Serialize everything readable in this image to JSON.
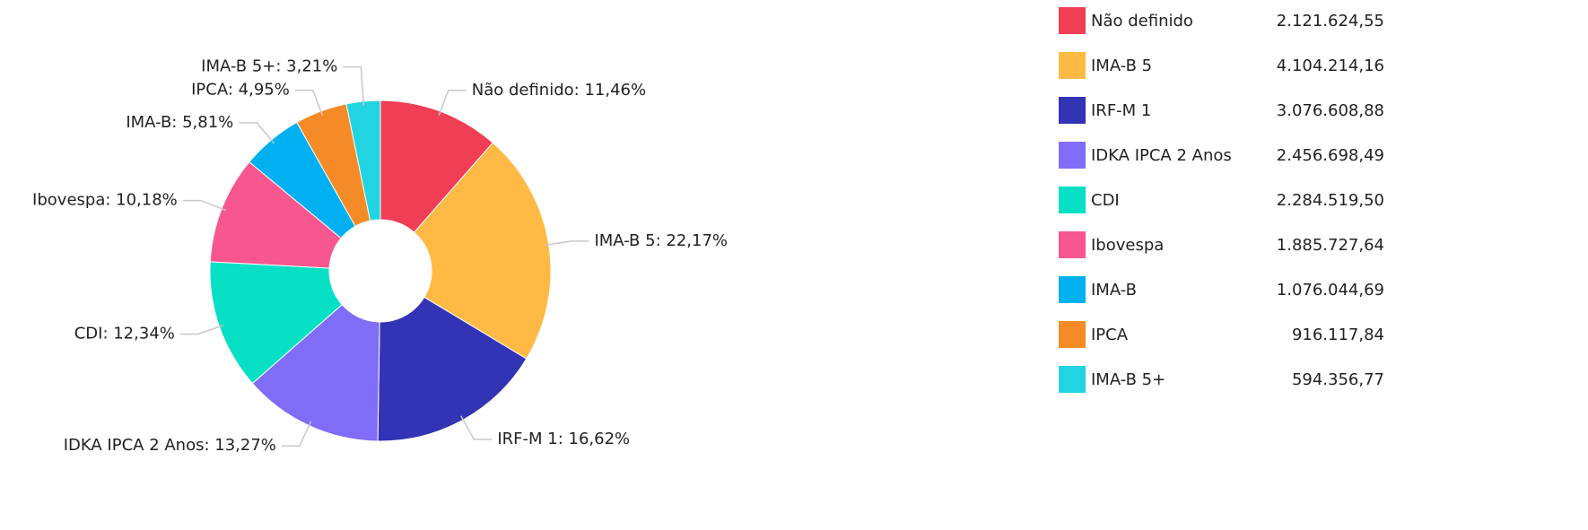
{
  "chart_data": {
    "type": "pie",
    "categories": [
      "Não definido",
      "IMA-B 5",
      "IRF-M 1",
      "IDKA IPCA 2 Anos",
      "CDI",
      "Ibovespa",
      "IMA-B",
      "IPCA",
      "IMA-B 5+"
    ],
    "values": [
      11.46,
      22.17,
      16.62,
      13.27,
      12.34,
      10.18,
      5.81,
      4.95,
      3.21
    ],
    "value_labels": [
      "11,46%",
      "22,17%",
      "16,62%",
      "13,27%",
      "12,34%",
      "10,18%",
      "5,81%",
      "4,95%",
      "3,21%"
    ],
    "amounts": [
      2121624.55,
      4104214.16,
      3076608.88,
      2456698.49,
      2284519.5,
      1885727.64,
      1076044.69,
      916117.84,
      594356.77
    ],
    "amount_labels": [
      "2.121.624,55",
      "4.104.214,16",
      "3.076.608,88",
      "2.456.698,49",
      "2.284.519,50",
      "1.885.727,64",
      "1.076.044,69",
      "916.117,84",
      "594.356,77"
    ],
    "colors": [
      "#f03e55",
      "#ffba45",
      "#3333b5",
      "#7f6cf7",
      "#08e0c6",
      "#f7568f",
      "#00b0f0",
      "#f48b27",
      "#22d4e2"
    ],
    "legend": "right"
  }
}
